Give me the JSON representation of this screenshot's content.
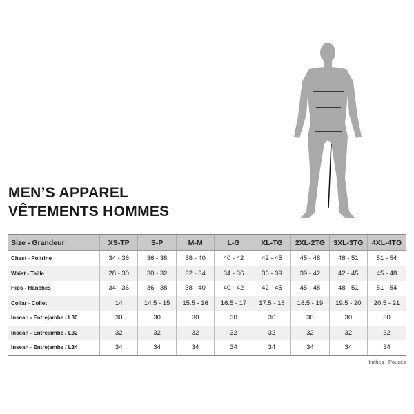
{
  "title": {
    "line1": "MEN’S APPAREL",
    "line2": "VÊTEMENTS HOMMES"
  },
  "table": {
    "headers": [
      "Size - Grandeur",
      "XS-TP",
      "S-P",
      "M-M",
      "L-G",
      "XL-TG",
      "2XL-2TG",
      "3XL-3TG",
      "4XL-4TG"
    ],
    "rows": [
      [
        "Chest - Poitrine",
        "34 - 36",
        "36 - 38",
        "38 - 40",
        "40 - 42",
        "42 - 45",
        "45 - 48",
        "48 - 51",
        "51 - 54"
      ],
      [
        "Waist - Taille",
        "28 - 30",
        "30 - 32",
        "32 - 34",
        "34 - 36",
        "36 - 39",
        "39 - 42",
        "42 - 45",
        "45 - 48"
      ],
      [
        "Hips - Hanches",
        "34 - 36",
        "36 - 38",
        "38 - 40",
        "40 - 42",
        "42 - 45",
        "45 - 48",
        "48 - 51",
        "51 - 54"
      ],
      [
        "Collar - Collet",
        "14",
        "14.5 - 15",
        "15.5 - 16",
        "16.5 - 17",
        "17.5 - 18",
        "18.5 - 19",
        "19.5 - 20",
        "20.5 - 21"
      ],
      [
        "Insean - Entrejambe / L30",
        "30",
        "30",
        "30",
        "30",
        "30",
        "30",
        "30",
        "30"
      ],
      [
        "Insean - Entrejambe / L32",
        "32",
        "32",
        "32",
        "32",
        "32",
        "32",
        "32",
        "32"
      ],
      [
        "Insean - Entrejambe / L34",
        "34",
        "34",
        "34",
        "34",
        "34",
        "34",
        "34",
        "34"
      ]
    ]
  },
  "units": "Inches - Pouces",
  "colors": {
    "header_bg": "#c9c9c9",
    "figure": "#a9a9a9",
    "alt_row": "#f0f0f0"
  }
}
